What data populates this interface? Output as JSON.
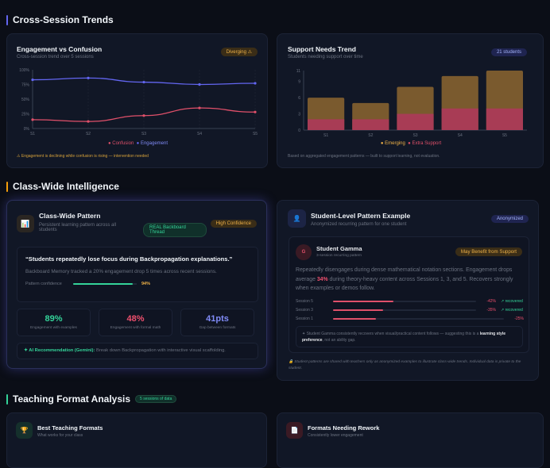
{
  "sections": {
    "trends": "Cross-Session Trends",
    "intel": "Class-Wide Intelligence",
    "format": "Teaching Format Analysis",
    "format_badge": "5 sessions of data"
  },
  "colors": {
    "engagement": "#6366f1",
    "confusion": "#e0506a",
    "emerging": "#7a5a2e",
    "extra": "#a83c55",
    "accent_green": "#34d399",
    "accent_amber": "#f59e0b"
  },
  "engagement_card": {
    "title": "Engagement vs Confusion",
    "subtitle": "Cross-session trend over 5 sessions",
    "badge": "Diverging ⚠",
    "note": "⚠ Engagement is declining while confusion is rising — intervention needed"
  },
  "support_card": {
    "title": "Support Needs Trend",
    "subtitle": "Students needing support over time",
    "badge": "21 students",
    "note": "Based on aggregated engagement patterns — built to support learning, not evaluation."
  },
  "chart_data": [
    {
      "type": "line",
      "categories": [
        "S1",
        "S2",
        "S3",
        "S4",
        "S5"
      ],
      "yticks": [
        "0%",
        "25%",
        "50%",
        "75%",
        "100%"
      ],
      "ylim": [
        0,
        100
      ],
      "series": [
        {
          "name": "Confusion",
          "values": [
            15,
            12,
            22,
            35,
            28
          ]
        },
        {
          "name": "Engagement",
          "values": [
            83,
            86,
            79,
            75,
            77
          ]
        }
      ],
      "legend": "bottom"
    },
    {
      "type": "bar",
      "stacked": true,
      "categories": [
        "S1",
        "S2",
        "S3",
        "S4",
        "S5"
      ],
      "yticks": [
        "0",
        "3",
        "6",
        "9",
        "11"
      ],
      "ylim": [
        0,
        11
      ],
      "series": [
        {
          "name": "Emerging",
          "values": [
            4,
            3,
            5,
            6,
            7
          ]
        },
        {
          "name": "Extra Support",
          "values": [
            2,
            2,
            3,
            4,
            4
          ]
        }
      ],
      "legend": "bottom"
    }
  ],
  "pattern": {
    "title": "Class-Wide Pattern",
    "subtitle": "Persistent learning pattern across all students",
    "icon": "bar-chart-icon",
    "thread_badge": "REAL Backboard Thread",
    "confidence_badge": "High Confidence",
    "quote": "“Students repeatedly lose focus during Backpropagation explanations.”",
    "detail": "Backboard Memory tracked a 20% engagement drop 5 times across recent sessions.",
    "confidence_label": "Pattern confidence",
    "confidence_value": "94%",
    "confidence_pct": 94,
    "stats": [
      {
        "value": "89%",
        "label": "Engagement with examples",
        "color": "#34d399"
      },
      {
        "value": "48%",
        "label": "Engagement with formal math",
        "color": "#f0506e"
      },
      {
        "value": "41pts",
        "label": "Gap between formats",
        "color": "#818cf8"
      }
    ],
    "rec_label": "✦ AI Recommendation (Gemini):",
    "rec_text": " Break down Backpropagation with interactive visual scaffolding."
  },
  "student": {
    "title": "Student-Level Pattern Example",
    "subtitle": "Anonymized recurring pattern for one student",
    "badge": "Anonymized",
    "avatar": "G",
    "name": "Student Gamma",
    "name_sub": "3-session recurring pattern",
    "support_badge": "May Benefit from Support",
    "desc_a": "Repeatedly disengages during dense mathematical notation sections. Engagement drops average ",
    "desc_hl": "34%",
    "desc_b": " during theory-heavy content across Sessions 1, 3, and 5. Recovers strongly when examples or demos follow.",
    "sessions": [
      {
        "label": "Session 5",
        "value": "-42%",
        "pct": 42,
        "status": "↗ recovered"
      },
      {
        "label": "Session 3",
        "value": "-35%",
        "pct": 35,
        "status": "↗ recovered"
      },
      {
        "label": "Session 1",
        "value": "-25%",
        "pct": 25,
        "status": ""
      }
    ],
    "insight_a": "✦ Student Gamma consistently recovers when visual/practical content follows — suggesting this is a ",
    "insight_b": "learning style preference",
    "insight_c": ", not an ability gap.",
    "privacy": "🔒 Student patterns are shared with teachers only as anonymized examples to illustrate class-wide trends. Individual data is private to the student."
  },
  "best": {
    "title": "Best Teaching Formats",
    "subtitle": "What works for your class",
    "icon": "trophy-icon"
  },
  "rework": {
    "title": "Formats Needing Rework",
    "subtitle": "Consistently lower engagement",
    "icon": "document-icon"
  }
}
